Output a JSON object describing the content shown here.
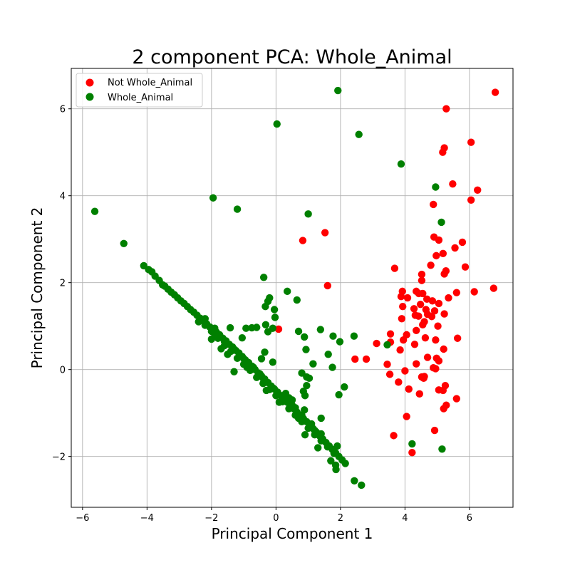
{
  "chart_data": {
    "type": "scatter",
    "title": "2 component PCA: Whole_Animal",
    "xlabel": "Principal Component 1",
    "ylabel": "Principal Component 2",
    "xlim": [
      -6.35,
      7.35
    ],
    "ylim": [
      -3.17,
      6.93
    ],
    "xticks": [
      -6,
      -4,
      -2,
      0,
      2,
      4,
      6
    ],
    "yticks": [
      -2,
      0,
      2,
      4,
      6
    ],
    "grid": true,
    "legend_position": "top-left",
    "series": [
      {
        "name": "Not Whole_Animal",
        "color": "#ff0000",
        "points": [
          [
            6.8,
            6.38
          ],
          [
            5.28,
            6.0
          ],
          [
            6.05,
            5.23
          ],
          [
            5.22,
            5.1
          ],
          [
            5.17,
            5.0
          ],
          [
            5.48,
            4.27
          ],
          [
            6.25,
            4.13
          ],
          [
            6.05,
            3.9
          ],
          [
            4.88,
            3.8
          ],
          [
            1.52,
            3.15
          ],
          [
            0.83,
            2.97
          ],
          [
            4.9,
            3.05
          ],
          [
            5.05,
            2.98
          ],
          [
            5.78,
            2.93
          ],
          [
            5.55,
            2.8
          ],
          [
            5.18,
            2.67
          ],
          [
            4.97,
            2.62
          ],
          [
            4.8,
            2.4
          ],
          [
            5.87,
            2.36
          ],
          [
            3.68,
            2.33
          ],
          [
            5.27,
            2.27
          ],
          [
            5.22,
            2.2
          ],
          [
            4.52,
            2.19
          ],
          [
            4.52,
            2.05
          ],
          [
            1.6,
            1.93
          ],
          [
            6.75,
            1.87
          ],
          [
            3.92,
            1.8
          ],
          [
            4.35,
            1.8
          ],
          [
            5.6,
            1.77
          ],
          [
            6.15,
            1.79
          ],
          [
            3.88,
            1.68
          ],
          [
            4.08,
            1.65
          ],
          [
            4.43,
            1.75
          ],
          [
            4.55,
            1.75
          ],
          [
            4.68,
            1.62
          ],
          [
            5.35,
            1.65
          ],
          [
            4.85,
            1.58
          ],
          [
            4.48,
            1.5
          ],
          [
            5.05,
            1.52
          ],
          [
            3.93,
            1.45
          ],
          [
            4.28,
            1.4
          ],
          [
            4.65,
            1.38
          ],
          [
            4.92,
            1.35
          ],
          [
            4.7,
            1.27
          ],
          [
            4.32,
            1.25
          ],
          [
            4.42,
            1.23
          ],
          [
            4.83,
            1.22
          ],
          [
            5.22,
            1.28
          ],
          [
            3.9,
            1.17
          ],
          [
            4.6,
            1.1
          ],
          [
            4.55,
            1.03
          ],
          [
            5.02,
            1.0
          ],
          [
            0.08,
            0.93
          ],
          [
            4.35,
            0.9
          ],
          [
            4.05,
            0.8
          ],
          [
            3.55,
            0.82
          ],
          [
            4.63,
            0.73
          ],
          [
            5.63,
            0.72
          ],
          [
            3.55,
            0.63
          ],
          [
            3.95,
            0.68
          ],
          [
            4.95,
            0.68
          ],
          [
            4.3,
            0.58
          ],
          [
            3.12,
            0.6
          ],
          [
            3.85,
            0.45
          ],
          [
            5.2,
            0.47
          ],
          [
            4.7,
            0.28
          ],
          [
            4.98,
            0.26
          ],
          [
            5.05,
            0.2
          ],
          [
            2.45,
            0.24
          ],
          [
            2.8,
            0.24
          ],
          [
            4.35,
            0.13
          ],
          [
            3.45,
            0.12
          ],
          [
            4.88,
            0.04
          ],
          [
            4.95,
            0.02
          ],
          [
            4.0,
            -0.03
          ],
          [
            3.53,
            -0.11
          ],
          [
            4.52,
            -0.17
          ],
          [
            4.6,
            -0.16
          ],
          [
            4.58,
            -0.2
          ],
          [
            3.8,
            -0.29
          ],
          [
            5.25,
            -0.37
          ],
          [
            4.12,
            -0.45
          ],
          [
            5.05,
            -0.47
          ],
          [
            5.18,
            -0.48
          ],
          [
            4.45,
            -0.56
          ],
          [
            5.6,
            -0.67
          ],
          [
            5.28,
            -0.82
          ],
          [
            5.2,
            -0.9
          ],
          [
            4.05,
            -1.08
          ],
          [
            4.92,
            -1.4
          ],
          [
            3.65,
            -1.52
          ],
          [
            4.22,
            -1.91
          ]
        ]
      },
      {
        "name": "Whole_Animal",
        "color": "#008000",
        "points": [
          [
            1.92,
            6.42
          ],
          [
            0.03,
            5.65
          ],
          [
            2.57,
            5.41
          ],
          [
            3.88,
            4.73
          ],
          [
            4.95,
            4.2
          ],
          [
            -1.95,
            3.95
          ],
          [
            -1.2,
            3.69
          ],
          [
            -5.62,
            3.64
          ],
          [
            1.0,
            3.58
          ],
          [
            5.13,
            3.39
          ],
          [
            -4.72,
            2.9
          ],
          [
            -0.38,
            2.12
          ],
          [
            0.35,
            1.8
          ],
          [
            0.65,
            1.6
          ],
          [
            -0.25,
            1.57
          ],
          [
            -0.2,
            1.65
          ],
          [
            -0.33,
            1.45
          ],
          [
            -0.05,
            1.38
          ],
          [
            -0.03,
            1.2
          ],
          [
            -0.32,
            1.03
          ],
          [
            -0.93,
            0.95
          ],
          [
            -1.42,
            0.96
          ],
          [
            -0.75,
            0.96
          ],
          [
            -0.6,
            0.97
          ],
          [
            -0.1,
            0.95
          ],
          [
            -0.25,
            0.87
          ],
          [
            1.38,
            0.92
          ],
          [
            0.7,
            0.88
          ],
          [
            -1.9,
            0.82
          ],
          [
            -1.05,
            0.73
          ],
          [
            0.88,
            0.75
          ],
          [
            1.77,
            0.77
          ],
          [
            2.42,
            0.77
          ],
          [
            1.98,
            0.64
          ],
          [
            3.45,
            0.57
          ],
          [
            -0.35,
            0.4
          ],
          [
            0.93,
            0.46
          ],
          [
            1.62,
            0.35
          ],
          [
            -0.45,
            0.25
          ],
          [
            -0.1,
            0.17
          ],
          [
            1.15,
            0.13
          ],
          [
            1.75,
            0.05
          ],
          [
            0.8,
            -0.08
          ],
          [
            0.95,
            -0.17
          ],
          [
            1.03,
            -0.2
          ],
          [
            -1.3,
            -0.05
          ],
          [
            2.12,
            -0.4
          ],
          [
            1.95,
            -0.58
          ],
          [
            0.4,
            -0.65
          ],
          [
            0.85,
            -0.5
          ],
          [
            0.9,
            -0.6
          ],
          [
            0.95,
            -0.37
          ],
          [
            0.88,
            -0.93
          ],
          [
            1.4,
            -1.12
          ],
          [
            1.37,
            -1.54
          ],
          [
            1.9,
            -1.76
          ],
          [
            4.22,
            -1.71
          ],
          [
            5.15,
            -1.83
          ],
          [
            1.86,
            -2.3
          ],
          [
            2.43,
            -2.56
          ],
          [
            2.65,
            -2.66
          ],
          [
            -4.1,
            2.39
          ],
          [
            -3.95,
            2.3
          ],
          [
            -3.85,
            2.25
          ],
          [
            -3.75,
            2.15
          ],
          [
            -3.62,
            2.05
          ],
          [
            -3.52,
            1.95
          ],
          [
            -3.45,
            1.92
          ],
          [
            -3.35,
            1.85
          ],
          [
            -3.25,
            1.78
          ],
          [
            -3.15,
            1.72
          ],
          [
            -3.05,
            1.65
          ],
          [
            -2.95,
            1.58
          ],
          [
            -2.85,
            1.52
          ],
          [
            -2.75,
            1.45
          ],
          [
            -2.65,
            1.38
          ],
          [
            -2.55,
            1.32
          ],
          [
            -2.45,
            1.25
          ],
          [
            -2.35,
            1.18
          ],
          [
            -2.25,
            1.12
          ],
          [
            -2.15,
            1.05
          ],
          [
            -2.05,
            0.98
          ],
          [
            -1.95,
            0.92
          ],
          [
            -1.85,
            0.86
          ],
          [
            -1.75,
            0.8
          ],
          [
            -1.65,
            0.72
          ],
          [
            -1.55,
            0.66
          ],
          [
            -1.45,
            0.58
          ],
          [
            -1.35,
            0.52
          ],
          [
            -1.25,
            0.44
          ],
          [
            -1.15,
            0.38
          ],
          [
            -1.05,
            0.3
          ],
          [
            -0.95,
            0.22
          ],
          [
            -0.85,
            0.16
          ],
          [
            -0.75,
            0.08
          ],
          [
            -0.65,
            0.0
          ],
          [
            -0.55,
            -0.08
          ],
          [
            -0.45,
            -0.15
          ],
          [
            -0.35,
            -0.22
          ],
          [
            -0.25,
            -0.3
          ],
          [
            -0.15,
            -0.38
          ],
          [
            -0.05,
            -0.45
          ],
          [
            0.05,
            -0.52
          ],
          [
            0.15,
            -0.6
          ],
          [
            0.25,
            -0.67
          ],
          [
            0.35,
            -0.75
          ],
          [
            0.45,
            -0.83
          ],
          [
            0.55,
            -0.9
          ],
          [
            0.65,
            -0.98
          ],
          [
            0.75,
            -1.05
          ],
          [
            0.85,
            -1.13
          ],
          [
            0.95,
            -1.2
          ],
          [
            1.05,
            -1.28
          ],
          [
            1.15,
            -1.36
          ],
          [
            1.25,
            -1.44
          ],
          [
            1.35,
            -1.52
          ],
          [
            1.45,
            -1.6
          ],
          [
            1.55,
            -1.68
          ],
          [
            1.65,
            -1.76
          ],
          [
            1.75,
            -1.84
          ],
          [
            1.85,
            -1.92
          ],
          [
            1.95,
            -2.0
          ],
          [
            2.05,
            -2.08
          ],
          [
            2.15,
            -2.16
          ],
          [
            -2.4,
            1.1
          ],
          [
            -2.2,
            1.02
          ],
          [
            -2.0,
            0.88
          ],
          [
            -1.8,
            0.72
          ],
          [
            -1.6,
            0.55
          ],
          [
            -1.4,
            0.42
          ],
          [
            -1.2,
            0.26
          ],
          [
            -1.0,
            0.12
          ],
          [
            -0.8,
            -0.02
          ],
          [
            -0.6,
            -0.18
          ],
          [
            -0.4,
            -0.32
          ],
          [
            -0.2,
            -0.46
          ],
          [
            0.0,
            -0.6
          ],
          [
            0.2,
            -0.74
          ],
          [
            0.4,
            -0.9
          ],
          [
            0.6,
            -1.05
          ],
          [
            0.8,
            -1.2
          ],
          [
            1.0,
            -1.35
          ],
          [
            1.2,
            -1.5
          ],
          [
            1.4,
            -1.64
          ],
          [
            1.6,
            -1.78
          ],
          [
            1.8,
            -1.93
          ],
          [
            -2.2,
            1.17
          ],
          [
            -1.9,
            0.95
          ],
          [
            -1.6,
            0.65
          ],
          [
            -1.3,
            0.47
          ],
          [
            -1.0,
            0.25
          ],
          [
            -0.7,
            0.05
          ],
          [
            -0.4,
            -0.2
          ],
          [
            -0.1,
            -0.42
          ],
          [
            0.2,
            -0.62
          ],
          [
            0.5,
            -0.82
          ],
          [
            0.8,
            -1.05
          ],
          [
            1.1,
            -1.25
          ],
          [
            1.4,
            -1.48
          ],
          [
            -0.5,
            -0.1
          ],
          [
            0.3,
            -0.55
          ],
          [
            0.5,
            -0.7
          ],
          [
            0.6,
            -0.88
          ],
          [
            0.7,
            -1.12
          ],
          [
            1.2,
            -1.4
          ],
          [
            -0.3,
            -0.48
          ],
          [
            0.1,
            -0.75
          ],
          [
            -0.9,
            0.05
          ],
          [
            -1.5,
            0.35
          ],
          [
            -1.7,
            0.48
          ],
          [
            -2.0,
            0.7
          ],
          [
            0.9,
            -1.5
          ],
          [
            1.3,
            -1.8
          ],
          [
            1.7,
            -2.1
          ],
          [
            1.85,
            -2.2
          ]
        ]
      }
    ]
  }
}
